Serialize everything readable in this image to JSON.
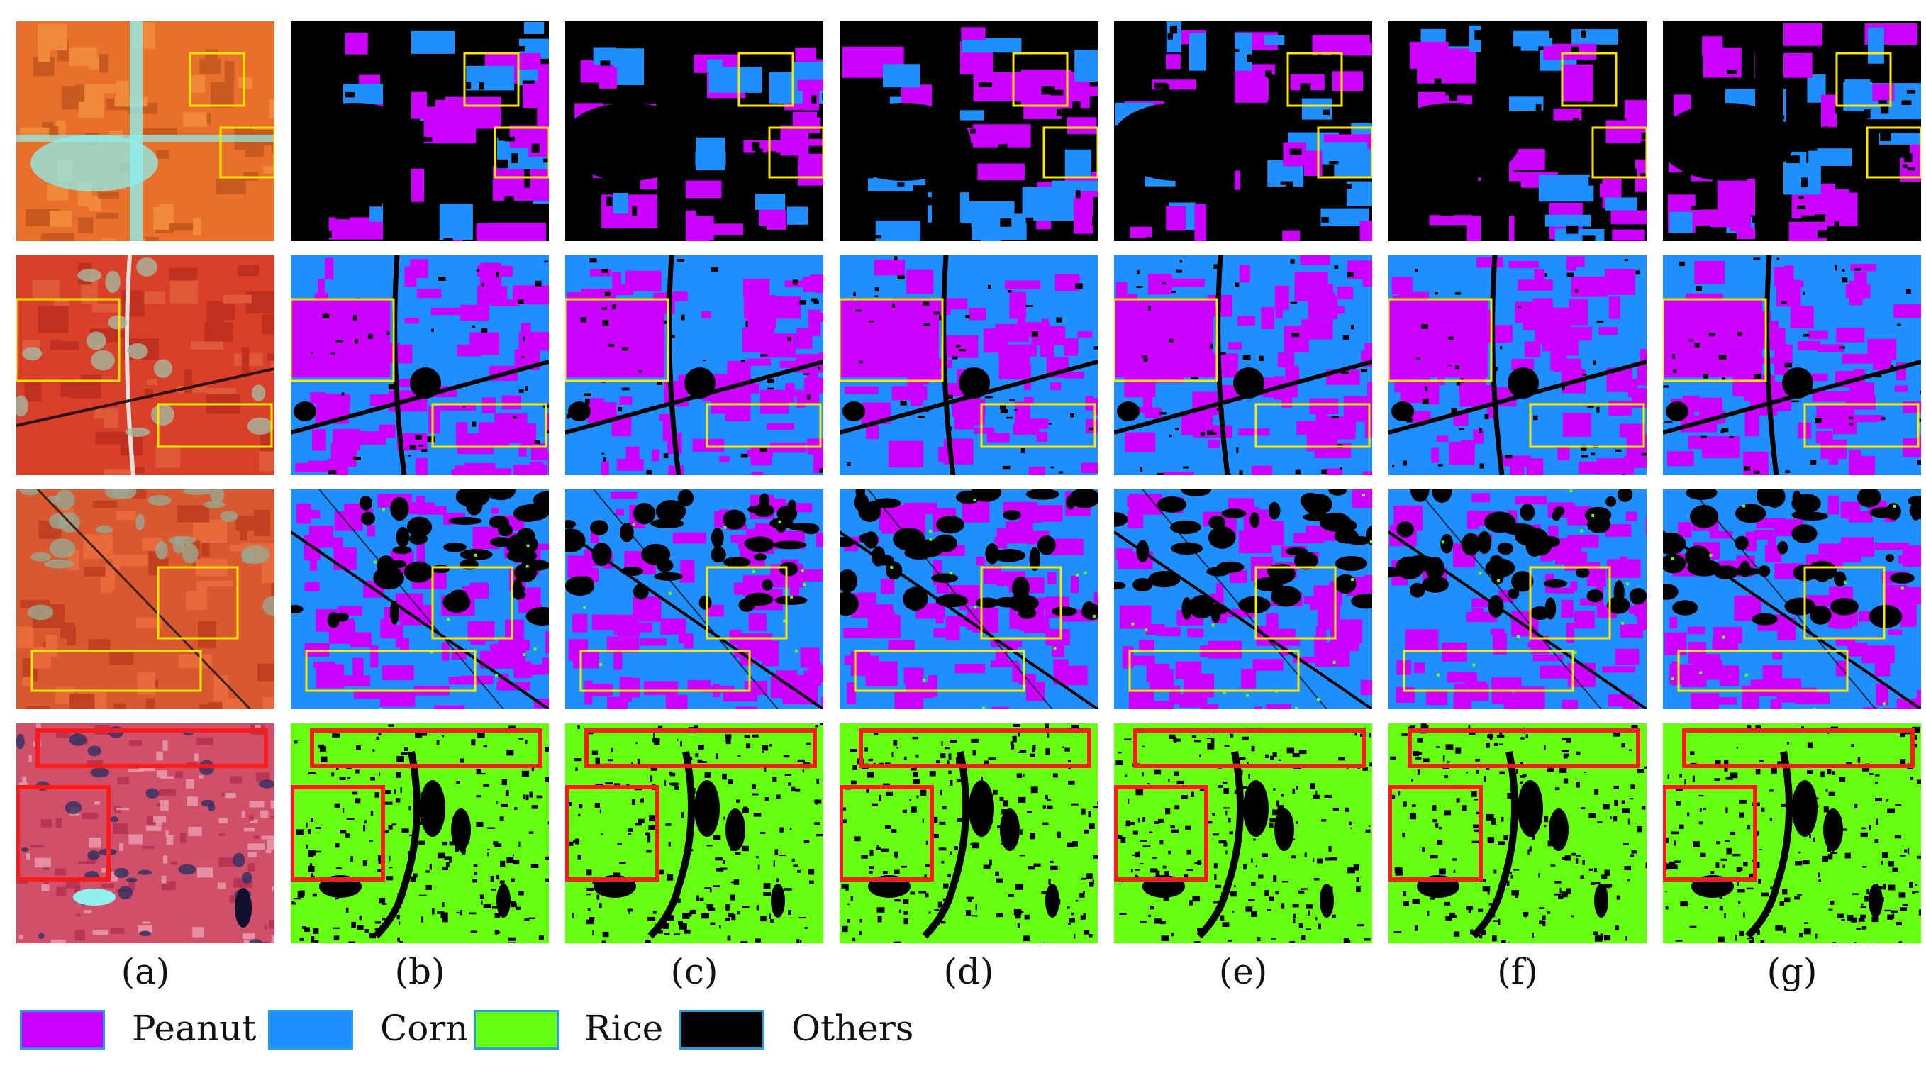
{
  "figure": {
    "columns": [
      "(a)",
      "(b)",
      "(c)",
      "(d)",
      "(e)",
      "(f)",
      "(g)"
    ],
    "rows": 4
  },
  "legend": [
    {
      "label": "Peanut",
      "color": "#cc00ff"
    },
    {
      "label": "Corn",
      "color": "#1f8fff"
    },
    {
      "label": "Rice",
      "color": "#66ff11"
    },
    {
      "label": "Others",
      "color": "#000000"
    }
  ],
  "colors": {
    "peanut": "#cc00ff",
    "corn": "#1f8fff",
    "rice": "#66ff11",
    "others": "#000000",
    "highlight_yellow": "#ffe600",
    "highlight_red": "#ff1a1a",
    "satellite_orange": "#e8702a",
    "satellite_red": "#d8402a",
    "satellite_pink": "#d0506a",
    "satellite_cyan": "#8ff0ee"
  }
}
